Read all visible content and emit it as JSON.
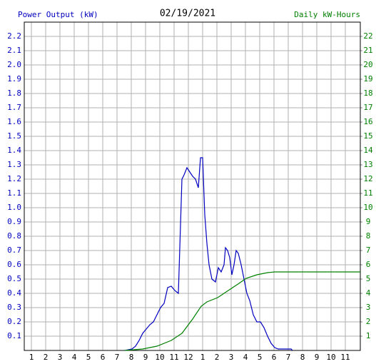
{
  "chart_data": {
    "type": "line",
    "title": "02/19/2021",
    "ylabel": "Power Output (kW)",
    "y2label": "Daily kW-Hours",
    "xlim": [
      0.5,
      24.05
    ],
    "xticks": [
      {
        "value": 1,
        "label": "1"
      },
      {
        "value": 2,
        "label": "2"
      },
      {
        "value": 3,
        "label": "3"
      },
      {
        "value": 4,
        "label": "4"
      },
      {
        "value": 5,
        "label": "5"
      },
      {
        "value": 6,
        "label": "6"
      },
      {
        "value": 7,
        "label": "7"
      },
      {
        "value": 8,
        "label": "8"
      },
      {
        "value": 9,
        "label": "9"
      },
      {
        "value": 10,
        "label": "10"
      },
      {
        "value": 11,
        "label": "11"
      },
      {
        "value": 12,
        "label": "12"
      },
      {
        "value": 13,
        "label": "1"
      },
      {
        "value": 14,
        "label": "2"
      },
      {
        "value": 15,
        "label": "3"
      },
      {
        "value": 16,
        "label": "4"
      },
      {
        "value": 17,
        "label": "5"
      },
      {
        "value": 18,
        "label": "6"
      },
      {
        "value": 19,
        "label": "7"
      },
      {
        "value": 20,
        "label": "8"
      },
      {
        "value": 21,
        "label": "9"
      },
      {
        "value": 22,
        "label": "10"
      },
      {
        "value": 23,
        "label": "11"
      }
    ],
    "ylim": [
      0,
      2.3
    ],
    "yticks": [
      0.1,
      0.2,
      0.3,
      0.4,
      0.5,
      0.6,
      0.7,
      0.8,
      0.9,
      {
        "value": 1,
        "label": "1.0"
      },
      1.1,
      1.2,
      1.3,
      1.4,
      1.5,
      1.6,
      1.7,
      1.8,
      1.9,
      {
        "value": 2,
        "label": "2.0"
      },
      2.1,
      2.2
    ],
    "y2lim": [
      0,
      23
    ],
    "y2ticks": [
      1,
      2,
      3,
      4,
      5,
      6,
      7,
      8,
      9,
      10,
      11,
      12,
      13,
      14,
      15,
      16,
      17,
      18,
      19,
      20,
      21,
      22
    ],
    "grid": true,
    "ycolor": "#0000c0",
    "y2color": "#008000",
    "series": [
      {
        "name": "Power Output (kW)",
        "color": "#0000c0",
        "axis": "y",
        "x": [
          7.55,
          8.05,
          8.3,
          8.55,
          8.8,
          9.05,
          9.3,
          9.55,
          9.8,
          10.05,
          10.3,
          10.55,
          10.8,
          11.05,
          11.3,
          11.55,
          11.7,
          11.9,
          12.1,
          12.3,
          12.5,
          12.7,
          12.85,
          13.0,
          13.15,
          13.3,
          13.45,
          13.65,
          13.9,
          14.1,
          14.3,
          14.5,
          14.6,
          14.75,
          14.9,
          15.05,
          15.2,
          15.35,
          15.5,
          15.7,
          15.9,
          16.1,
          16.3,
          16.55,
          16.8,
          17.05,
          17.3,
          17.55,
          17.8,
          18.05,
          18.3,
          19.2,
          19.3
        ],
        "values": [
          0,
          0.01,
          0.03,
          0.07,
          0.12,
          0.15,
          0.18,
          0.2,
          0.25,
          0.3,
          0.33,
          0.44,
          0.45,
          0.42,
          0.4,
          1.2,
          1.23,
          1.28,
          1.25,
          1.22,
          1.2,
          1.14,
          1.35,
          1.35,
          0.95,
          0.75,
          0.6,
          0.5,
          0.48,
          0.58,
          0.55,
          0.6,
          0.72,
          0.7,
          0.65,
          0.53,
          0.6,
          0.7,
          0.68,
          0.6,
          0.5,
          0.4,
          0.35,
          0.25,
          0.2,
          0.2,
          0.16,
          0.1,
          0.05,
          0.02,
          0.01,
          0.01,
          0
        ]
      },
      {
        "name": "Daily kW-Hours",
        "color": "#008000",
        "axis": "y2",
        "x": [
          7.55,
          8.8,
          9.8,
          10.8,
          11.55,
          12.3,
          12.9,
          13.3,
          14.05,
          14.8,
          15.55,
          16.05,
          16.8,
          17.55,
          18.05,
          24.05
        ],
        "values": [
          0,
          0.1,
          0.3,
          0.7,
          1.2,
          2.2,
          3.1,
          3.4,
          3.7,
          4.2,
          4.7,
          5.05,
          5.3,
          5.45,
          5.5,
          5.5
        ]
      }
    ]
  }
}
